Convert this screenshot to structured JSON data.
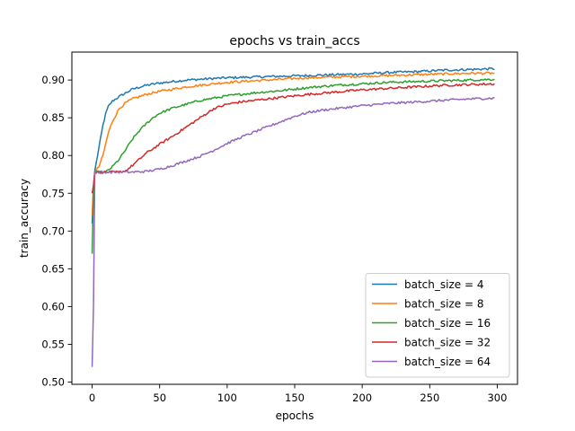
{
  "chart_data": {
    "type": "line",
    "title": "epochs vs train_accs",
    "xlabel": "epochs",
    "ylabel": "train_accuracy",
    "xlim": [
      -15,
      315
    ],
    "ylim": [
      0.497,
      0.937
    ],
    "xticks": [
      0,
      50,
      100,
      150,
      200,
      250,
      300
    ],
    "yticks": [
      0.5,
      0.55,
      0.6,
      0.65,
      0.7,
      0.75,
      0.8,
      0.85,
      0.9
    ],
    "grid": false,
    "legend": "lower-right",
    "series": [
      {
        "name": "batch_size = 4",
        "color": "#1f77b4",
        "points": [
          [
            0,
            0.71
          ],
          [
            1,
            0.76
          ],
          [
            2,
            0.78
          ],
          [
            4,
            0.8
          ],
          [
            6,
            0.82
          ],
          [
            8,
            0.84
          ],
          [
            10,
            0.855
          ],
          [
            12,
            0.865
          ],
          [
            15,
            0.872
          ],
          [
            20,
            0.878
          ],
          [
            25,
            0.883
          ],
          [
            30,
            0.888
          ],
          [
            40,
            0.893
          ],
          [
            50,
            0.896
          ],
          [
            60,
            0.898
          ],
          [
            70,
            0.9
          ],
          [
            80,
            0.901
          ],
          [
            90,
            0.902
          ],
          [
            100,
            0.903
          ],
          [
            120,
            0.904
          ],
          [
            140,
            0.905
          ],
          [
            160,
            0.906
          ],
          [
            180,
            0.907
          ],
          [
            200,
            0.908
          ],
          [
            220,
            0.91
          ],
          [
            240,
            0.911
          ],
          [
            260,
            0.913
          ],
          [
            280,
            0.914
          ],
          [
            298,
            0.915
          ]
        ]
      },
      {
        "name": "batch_size = 8",
        "color": "#ff7f0e",
        "points": [
          [
            0,
            0.72
          ],
          [
            1,
            0.76
          ],
          [
            2,
            0.778
          ],
          [
            5,
            0.785
          ],
          [
            8,
            0.8
          ],
          [
            10,
            0.815
          ],
          [
            12,
            0.83
          ],
          [
            15,
            0.845
          ],
          [
            20,
            0.862
          ],
          [
            25,
            0.87
          ],
          [
            30,
            0.875
          ],
          [
            40,
            0.881
          ],
          [
            50,
            0.885
          ],
          [
            60,
            0.888
          ],
          [
            70,
            0.891
          ],
          [
            80,
            0.893
          ],
          [
            90,
            0.895
          ],
          [
            100,
            0.897
          ],
          [
            120,
            0.899
          ],
          [
            140,
            0.901
          ],
          [
            160,
            0.903
          ],
          [
            180,
            0.904
          ],
          [
            200,
            0.905
          ],
          [
            220,
            0.906
          ],
          [
            240,
            0.907
          ],
          [
            260,
            0.908
          ],
          [
            280,
            0.909
          ],
          [
            298,
            0.909
          ]
        ]
      },
      {
        "name": "batch_size = 16",
        "color": "#2ca02c",
        "points": [
          [
            0,
            0.67
          ],
          [
            1,
            0.75
          ],
          [
            2,
            0.778
          ],
          [
            10,
            0.778
          ],
          [
            15,
            0.785
          ],
          [
            20,
            0.795
          ],
          [
            25,
            0.808
          ],
          [
            30,
            0.822
          ],
          [
            35,
            0.833
          ],
          [
            40,
            0.842
          ],
          [
            45,
            0.85
          ],
          [
            50,
            0.856
          ],
          [
            60,
            0.863
          ],
          [
            70,
            0.868
          ],
          [
            80,
            0.873
          ],
          [
            90,
            0.876
          ],
          [
            100,
            0.879
          ],
          [
            120,
            0.883
          ],
          [
            140,
            0.886
          ],
          [
            160,
            0.89
          ],
          [
            180,
            0.893
          ],
          [
            200,
            0.895
          ],
          [
            220,
            0.897
          ],
          [
            240,
            0.898
          ],
          [
            260,
            0.899
          ],
          [
            280,
            0.9
          ],
          [
            298,
            0.901
          ]
        ]
      },
      {
        "name": "batch_size = 32",
        "color": "#d62728",
        "points": [
          [
            0,
            0.75
          ],
          [
            1,
            0.76
          ],
          [
            2,
            0.778
          ],
          [
            20,
            0.778
          ],
          [
            25,
            0.78
          ],
          [
            30,
            0.787
          ],
          [
            35,
            0.795
          ],
          [
            40,
            0.803
          ],
          [
            50,
            0.815
          ],
          [
            60,
            0.826
          ],
          [
            70,
            0.838
          ],
          [
            80,
            0.85
          ],
          [
            90,
            0.862
          ],
          [
            100,
            0.868
          ],
          [
            110,
            0.871
          ],
          [
            120,
            0.873
          ],
          [
            140,
            0.877
          ],
          [
            160,
            0.881
          ],
          [
            180,
            0.884
          ],
          [
            200,
            0.887
          ],
          [
            220,
            0.889
          ],
          [
            240,
            0.891
          ],
          [
            260,
            0.893
          ],
          [
            280,
            0.894
          ],
          [
            298,
            0.895
          ]
        ]
      },
      {
        "name": "batch_size = 64",
        "color": "#9467bd",
        "points": [
          [
            0,
            0.52
          ],
          [
            1,
            0.6
          ],
          [
            2,
            0.778
          ],
          [
            30,
            0.778
          ],
          [
            40,
            0.779
          ],
          [
            50,
            0.782
          ],
          [
            60,
            0.787
          ],
          [
            70,
            0.793
          ],
          [
            80,
            0.799
          ],
          [
            90,
            0.807
          ],
          [
            100,
            0.816
          ],
          [
            110,
            0.824
          ],
          [
            120,
            0.831
          ],
          [
            130,
            0.838
          ],
          [
            140,
            0.845
          ],
          [
            150,
            0.852
          ],
          [
            160,
            0.857
          ],
          [
            170,
            0.86
          ],
          [
            180,
            0.862
          ],
          [
            190,
            0.864
          ],
          [
            200,
            0.866
          ],
          [
            220,
            0.869
          ],
          [
            240,
            0.871
          ],
          [
            260,
            0.873
          ],
          [
            280,
            0.875
          ],
          [
            298,
            0.876
          ]
        ]
      }
    ]
  }
}
